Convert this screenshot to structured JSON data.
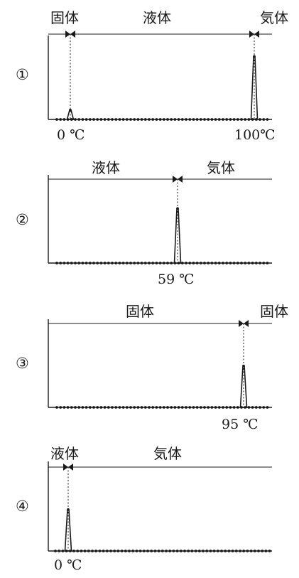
{
  "colors": {
    "ink": "#1a1a1a",
    "marker": "#ffffff"
  },
  "panels": [
    {
      "number": "①",
      "phase_labels": [
        "固体",
        "液体",
        "気体"
      ],
      "transition_labels": [
        "0 ℃",
        "100℃"
      ],
      "peak_heights": [
        0.13,
        0.87
      ]
    },
    {
      "number": "②",
      "phase_labels": [
        "液体",
        "気体"
      ],
      "transition_labels": [
        "59 ℃"
      ],
      "peak_heights": [
        0.62
      ]
    },
    {
      "number": "③",
      "phase_labels": [
        "固体",
        "固体"
      ],
      "transition_labels": [
        "95 ℃"
      ],
      "peak_heights": [
        0.47
      ]
    },
    {
      "number": "④",
      "phase_labels": [
        "液体",
        "気体"
      ],
      "transition_labels": [
        "0 ℃"
      ],
      "peak_heights": [
        0.47
      ]
    }
  ]
}
